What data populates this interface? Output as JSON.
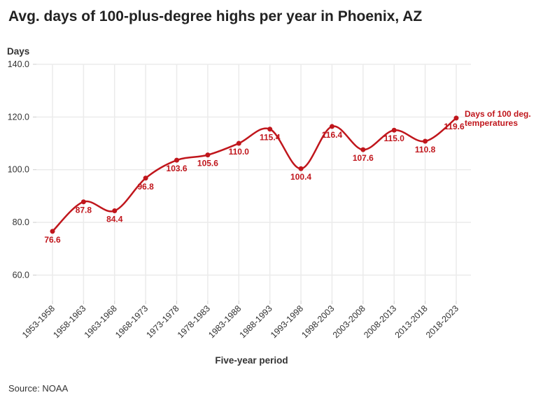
{
  "chart_data": {
    "type": "line",
    "title": "Avg. days of 100-plus-degree highs per year in Phoenix, AZ",
    "xlabel": "Five-year period",
    "ylabel": "Days",
    "source": "Source: NOAA",
    "categories": [
      "1953-1958",
      "1958-1963",
      "1963-1968",
      "1968-1973",
      "1973-1978",
      "1978-1983",
      "1983-1988",
      "1988-1993",
      "1993-1998",
      "1998-2003",
      "2003-2008",
      "2008-2013",
      "2013-2018",
      "2018-2023"
    ],
    "series": [
      {
        "name": "Days of 100 deg. temperatures",
        "values": [
          76.6,
          87.8,
          84.4,
          96.8,
          103.6,
          105.6,
          110.0,
          115.4,
          100.4,
          116.4,
          107.6,
          115.0,
          110.8,
          119.6
        ],
        "color": "#c0161c"
      }
    ],
    "data_labels": [
      "76.6",
      "87.8",
      "84.4",
      "96.8",
      "103.6",
      "105.6",
      "110.0",
      "115.4",
      "100.4",
      "116.4",
      "107.6",
      "115.0",
      "110.8",
      "119.6"
    ],
    "series_label_lines": [
      "Days of 100 deg.",
      "temperatures"
    ],
    "yticks": [
      60,
      80,
      100,
      120,
      140
    ],
    "ytick_labels": [
      "60.0",
      "80.0",
      "100.0",
      "120.0",
      "140.0"
    ],
    "ylim": [
      50.3,
      140
    ],
    "grid": true,
    "legend": "direct label at end of line"
  }
}
